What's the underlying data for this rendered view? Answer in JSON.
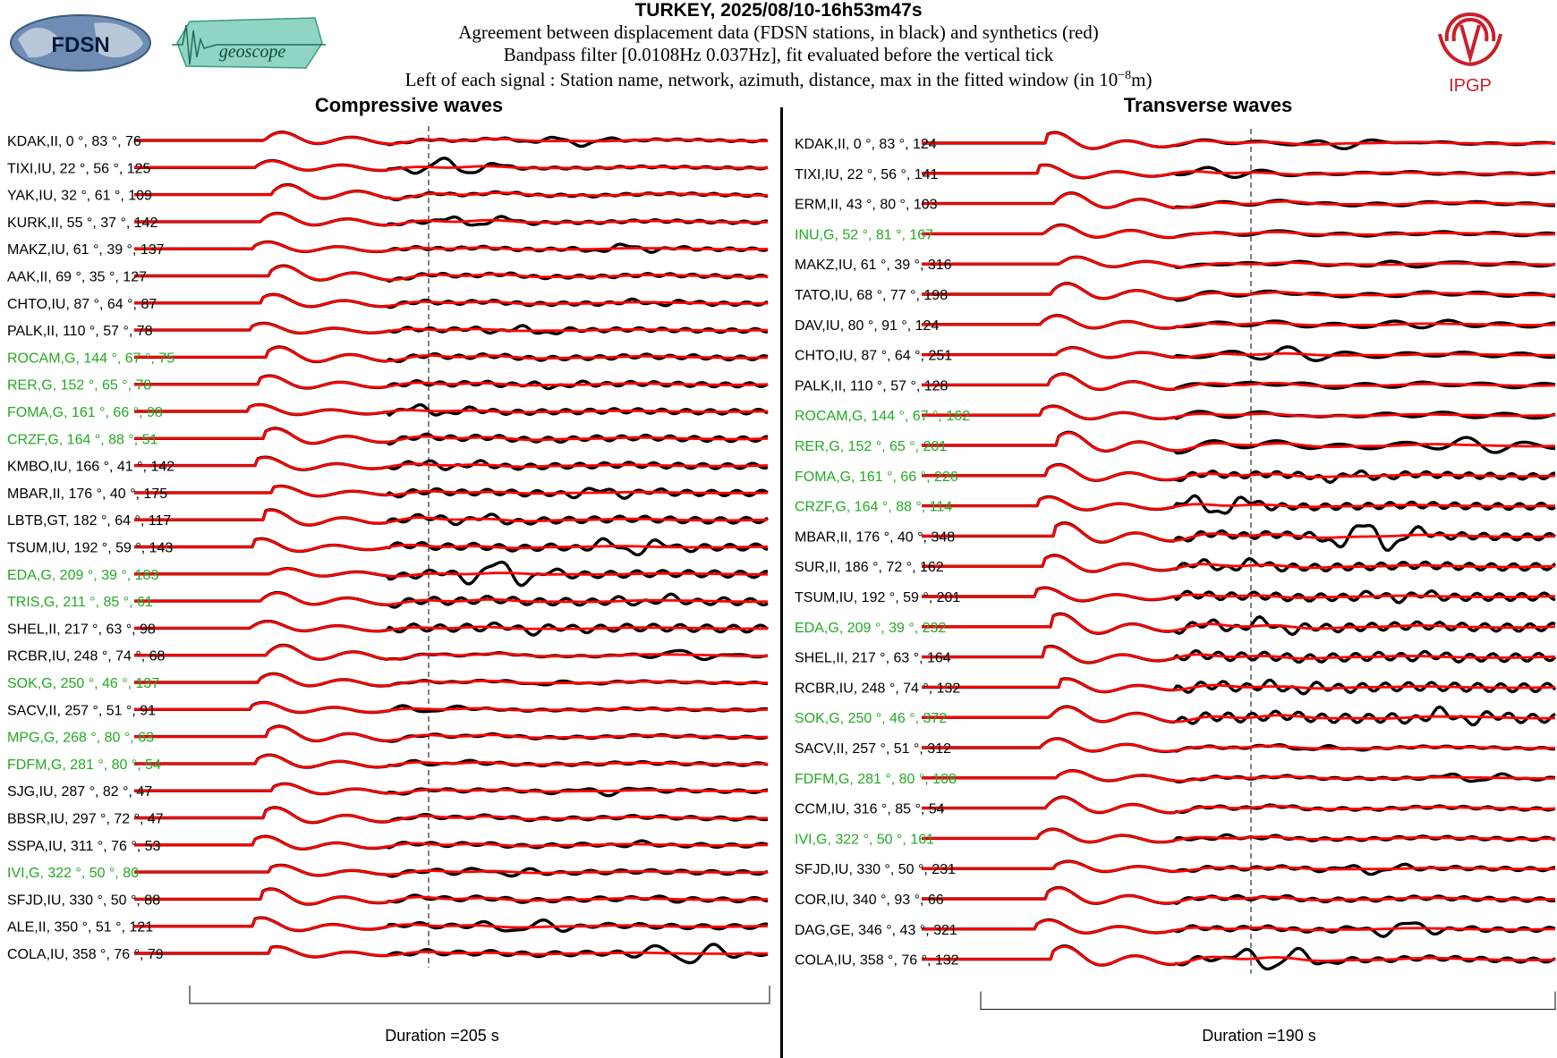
{
  "header": {
    "title": "TURKEY, 2025/08/10-16h53m47s",
    "line1": "Agreement between displacement data (FDSN stations, in black) and synthetics (red)",
    "line2": "Bandpass filter [0.0108Hz 0.037Hz], fit evaluated before the vertical tick",
    "line3_prefix": "Left of each signal : Station name, network, azimuth, distance, max in the fitted window (in 10",
    "line3_exp": "−8",
    "line3_suffix": "m)"
  },
  "logos": {
    "fdsn": "FDSN",
    "geoscope": "geoscope",
    "ipgp": "IPGP"
  },
  "colors": {
    "data": "#000000",
    "synthetic": "#ff0000",
    "geoscope_station": "#22aa22",
    "other_station": "#000000"
  },
  "chart_data": [
    {
      "type": "line",
      "title": "Compressive waves",
      "duration_label": "Duration =205 s",
      "series": [
        {
          "name": "data"
        },
        {
          "name": "synthetics"
        }
      ],
      "stations": [
        {
          "label": "KDAK,II, 0 °, 83 °, 76",
          "geoscope": false
        },
        {
          "label": "TIXI,IU, 22 °, 56 °, 125",
          "geoscope": false
        },
        {
          "label": "YAK,IU, 32 °, 61 °, 109",
          "geoscope": false
        },
        {
          "label": "KURK,II, 55 °, 37 °, 142",
          "geoscope": false
        },
        {
          "label": "MAKZ,IU, 61 °, 39 °, 137",
          "geoscope": false
        },
        {
          "label": "AAK,II, 69 °, 35 °, 127",
          "geoscope": false
        },
        {
          "label": "CHTO,IU, 87 °, 64 °, 87",
          "geoscope": false
        },
        {
          "label": "PALK,II, 110 °, 57 °, 78",
          "geoscope": false
        },
        {
          "label": "ROCAM,G, 144 °, 67 °, 75",
          "geoscope": true
        },
        {
          "label": "RER,G, 152 °, 65 °, 78",
          "geoscope": true
        },
        {
          "label": "FOMA,G, 161 °, 66 °, 98",
          "geoscope": true
        },
        {
          "label": "CRZF,G, 164 °, 88 °, 51",
          "geoscope": true
        },
        {
          "label": "KMBO,IU, 166 °, 41 °, 142",
          "geoscope": false
        },
        {
          "label": "MBAR,II, 176 °, 40 °, 175",
          "geoscope": false
        },
        {
          "label": "LBTB,GT, 182 °, 64 °, 117",
          "geoscope": false
        },
        {
          "label": "TSUM,IU, 192 °, 59 °, 143",
          "geoscope": false
        },
        {
          "label": "EDA,G, 209 °, 39 °, 183",
          "geoscope": true
        },
        {
          "label": "TRIS,G, 211 °, 85 °, 61",
          "geoscope": true
        },
        {
          "label": "SHEL,II, 217 °, 63 °, 98",
          "geoscope": false
        },
        {
          "label": "RCBR,IU, 248 °, 74 °, 68",
          "geoscope": false
        },
        {
          "label": "SOK,G, 250 °, 46 °, 137",
          "geoscope": true
        },
        {
          "label": "SACV,II, 257 °, 51 °, 91",
          "geoscope": false
        },
        {
          "label": "MPG,G, 268 °, 80 °, 63",
          "geoscope": true
        },
        {
          "label": "FDFM,G, 281 °, 80 °, 54",
          "geoscope": true
        },
        {
          "label": "SJG,IU, 287 °, 82 °, 47",
          "geoscope": false
        },
        {
          "label": "BBSR,IU, 297 °, 72 °, 47",
          "geoscope": false
        },
        {
          "label": "SSPA,IU, 311 °, 76 °, 53",
          "geoscope": false
        },
        {
          "label": "IVI,G, 322 °, 50 °, 80",
          "geoscope": true
        },
        {
          "label": "SFJD,IU, 330 °, 50 °, 88",
          "geoscope": false
        },
        {
          "label": "ALE,II, 350 °, 51 °, 121",
          "geoscope": false
        },
        {
          "label": "COLA,IU, 358 °, 76 °, 79",
          "geoscope": false
        }
      ]
    },
    {
      "type": "line",
      "title": "Transverse waves",
      "duration_label": "Duration =190 s",
      "series": [
        {
          "name": "data"
        },
        {
          "name": "synthetics"
        }
      ],
      "stations": [
        {
          "label": "KDAK,II, 0 °, 83 °, 124",
          "geoscope": false
        },
        {
          "label": "TIXI,IU, 22 °, 56 °, 141",
          "geoscope": false
        },
        {
          "label": "ERM,II, 43 °, 80 °, 103",
          "geoscope": false
        },
        {
          "label": "INU,G, 52 °, 81 °, 167",
          "geoscope": true
        },
        {
          "label": "MAKZ,IU, 61 °, 39 °, 316",
          "geoscope": false
        },
        {
          "label": "TATO,IU, 68 °, 77 °, 198",
          "geoscope": false
        },
        {
          "label": "DAV,IU, 80 °, 91 °, 124",
          "geoscope": false
        },
        {
          "label": "CHTO,IU, 87 °, 64 °, 251",
          "geoscope": false
        },
        {
          "label": "PALK,II, 110 °, 57 °, 128",
          "geoscope": false
        },
        {
          "label": "ROCAM,G, 144 °, 67 °, 162",
          "geoscope": true
        },
        {
          "label": "RER,G, 152 °, 65 °, 201",
          "geoscope": true
        },
        {
          "label": "FOMA,G, 161 °, 66 °, 226",
          "geoscope": true
        },
        {
          "label": "CRZF,G, 164 °, 88 °, 114",
          "geoscope": true
        },
        {
          "label": "MBAR,II, 176 °, 40 °, 348",
          "geoscope": false
        },
        {
          "label": "SUR,II, 186 °, 72 °, 162",
          "geoscope": false
        },
        {
          "label": "TSUM,IU, 192 °, 59 °, 201",
          "geoscope": false
        },
        {
          "label": "EDA,G, 209 °, 39 °, 232",
          "geoscope": true
        },
        {
          "label": "SHEL,II, 217 °, 63 °, 164",
          "geoscope": false
        },
        {
          "label": "RCBR,IU, 248 °, 74 °, 132",
          "geoscope": false
        },
        {
          "label": "SOK,G, 250 °, 46 °, 372",
          "geoscope": true
        },
        {
          "label": "SACV,II, 257 °, 51 °, 312",
          "geoscope": false
        },
        {
          "label": "FDFM,G, 281 °, 80 °, 108",
          "geoscope": true
        },
        {
          "label": "CCM,IU, 316 °, 85 °, 54",
          "geoscope": false
        },
        {
          "label": "IVI,G, 322 °, 50 °, 161",
          "geoscope": true
        },
        {
          "label": "SFJD,IU, 330 °, 50 °, 231",
          "geoscope": false
        },
        {
          "label": "COR,IU, 340 °, 93 °, 66",
          "geoscope": false
        },
        {
          "label": "DAG,GE, 346 °, 43 °, 321",
          "geoscope": false
        },
        {
          "label": "COLA,IU, 358 °, 76 °, 132",
          "geoscope": false
        }
      ]
    }
  ]
}
